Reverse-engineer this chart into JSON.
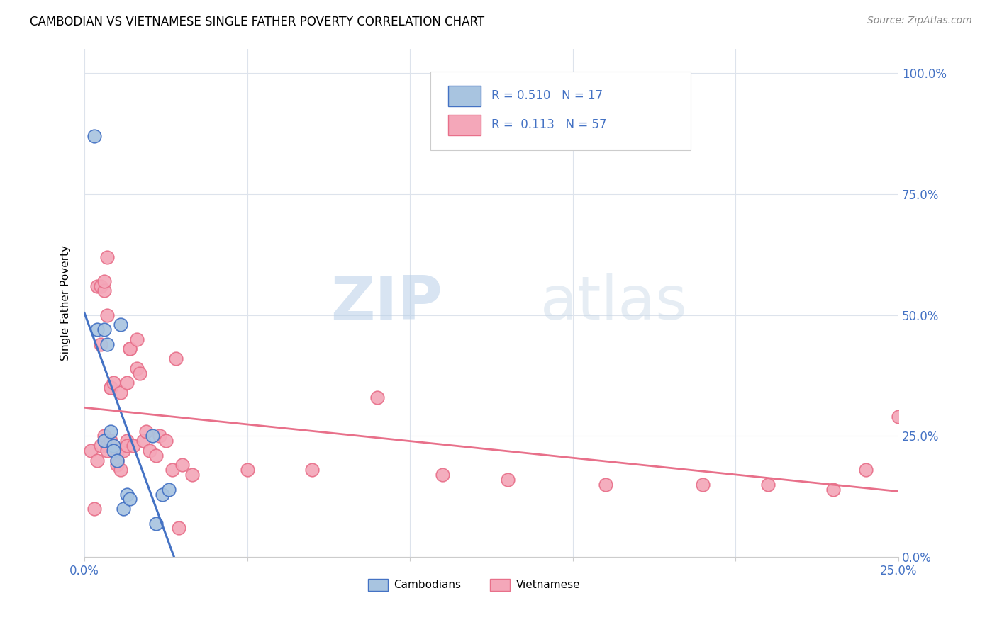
{
  "title": "CAMBODIAN VS VIETNAMESE SINGLE FATHER POVERTY CORRELATION CHART",
  "source": "Source: ZipAtlas.com",
  "ylabel": "Single Father Poverty",
  "xlim": [
    0.0,
    0.25
  ],
  "ylim": [
    0.0,
    1.05
  ],
  "legend_label1": "Cambodians",
  "legend_label2": "Vietnamese",
  "R_camb": 0.51,
  "N_camb": 17,
  "R_viet": 0.113,
  "N_viet": 57,
  "color_camb": "#a8c4e0",
  "color_camb_line": "#4472c4",
  "color_viet": "#f4a7b9",
  "color_viet_line": "#e8708a",
  "color_text_blue": "#4472c4",
  "watermark_zip": "ZIP",
  "watermark_atlas": "atlas",
  "background_color": "#ffffff",
  "grid_color": "#dde3ec",
  "camb_x": [
    0.003,
    0.004,
    0.006,
    0.006,
    0.007,
    0.008,
    0.009,
    0.009,
    0.01,
    0.011,
    0.012,
    0.013,
    0.014,
    0.021,
    0.022,
    0.024,
    0.026
  ],
  "camb_y": [
    0.87,
    0.47,
    0.47,
    0.24,
    0.44,
    0.26,
    0.23,
    0.22,
    0.2,
    0.48,
    0.1,
    0.13,
    0.12,
    0.25,
    0.07,
    0.13,
    0.14
  ],
  "viet_x": [
    0.002,
    0.003,
    0.004,
    0.004,
    0.005,
    0.005,
    0.005,
    0.006,
    0.006,
    0.006,
    0.007,
    0.007,
    0.007,
    0.007,
    0.008,
    0.008,
    0.008,
    0.009,
    0.009,
    0.01,
    0.01,
    0.01,
    0.01,
    0.011,
    0.011,
    0.012,
    0.013,
    0.013,
    0.013,
    0.014,
    0.014,
    0.015,
    0.016,
    0.016,
    0.017,
    0.018,
    0.019,
    0.02,
    0.022,
    0.023,
    0.025,
    0.027,
    0.028,
    0.029,
    0.03,
    0.033,
    0.05,
    0.07,
    0.09,
    0.11,
    0.13,
    0.16,
    0.19,
    0.21,
    0.23,
    0.24,
    0.25
  ],
  "viet_y": [
    0.22,
    0.1,
    0.2,
    0.56,
    0.23,
    0.44,
    0.56,
    0.25,
    0.55,
    0.57,
    0.23,
    0.5,
    0.62,
    0.22,
    0.35,
    0.35,
    0.24,
    0.23,
    0.36,
    0.21,
    0.2,
    0.19,
    0.22,
    0.18,
    0.34,
    0.22,
    0.36,
    0.24,
    0.23,
    0.43,
    0.43,
    0.23,
    0.45,
    0.39,
    0.38,
    0.24,
    0.26,
    0.22,
    0.21,
    0.25,
    0.24,
    0.18,
    0.41,
    0.06,
    0.19,
    0.17,
    0.18,
    0.18,
    0.33,
    0.17,
    0.16,
    0.15,
    0.15,
    0.15,
    0.14,
    0.18,
    0.29
  ]
}
